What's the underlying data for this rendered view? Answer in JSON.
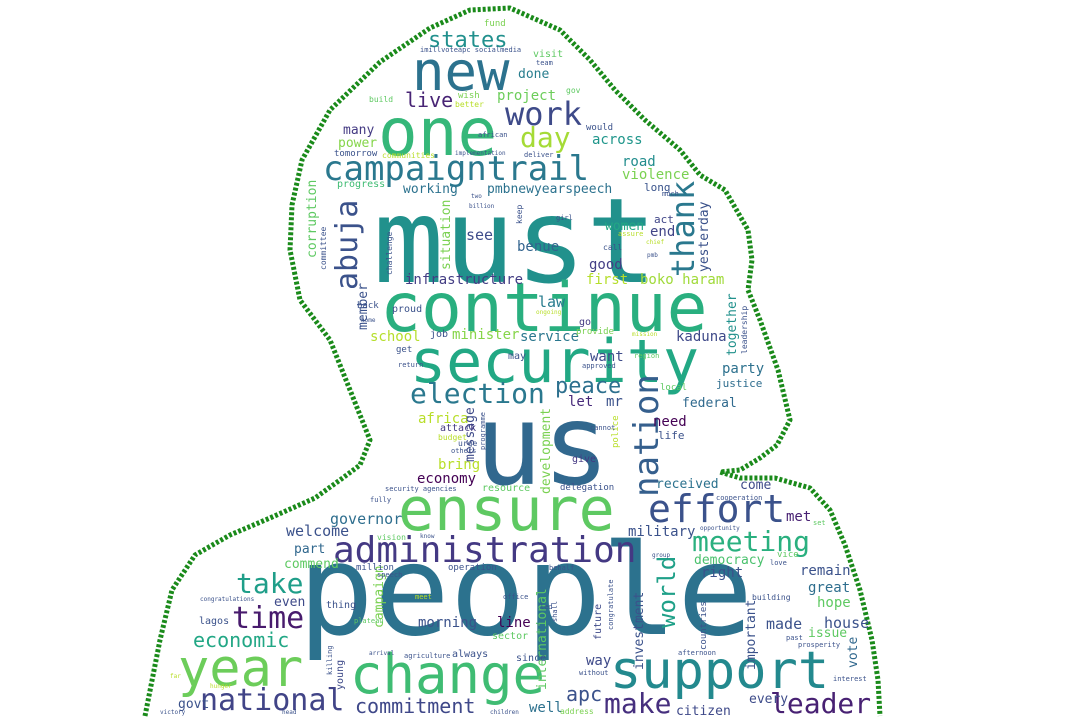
{
  "words": [
    {
      "t": "must",
      "c": "#21918c"
    },
    {
      "t": "people",
      "c": "#2c728e"
    },
    {
      "t": "us",
      "c": "#31688e"
    },
    {
      "t": "continue",
      "c": "#29af7f"
    },
    {
      "t": "security",
      "c": "#22a884"
    },
    {
      "t": "one",
      "c": "#35b779"
    },
    {
      "t": "new",
      "c": "#2c728e"
    },
    {
      "t": "ensure",
      "c": "#5ec962"
    },
    {
      "t": "change",
      "c": "#3fbc73"
    },
    {
      "t": "support",
      "c": "#23898e"
    },
    {
      "t": "year",
      "c": "#6ccd5a"
    },
    {
      "t": "campaigntrail",
      "c": "#2a788e"
    },
    {
      "t": "administration",
      "c": "#443983"
    },
    {
      "t": "effort",
      "c": "#3b528b"
    },
    {
      "t": "election",
      "c": "#2a788e"
    },
    {
      "t": "national",
      "c": "#414487"
    },
    {
      "t": "work",
      "c": "#3e4a89"
    },
    {
      "t": "day",
      "c": "#a5db36"
    },
    {
      "t": "states",
      "c": "#21908d"
    },
    {
      "t": "thank",
      "c": "#2a788e"
    },
    {
      "t": "abuja",
      "c": "#3b528b"
    },
    {
      "t": "nation",
      "c": "#355f8d"
    },
    {
      "t": "meeting",
      "c": "#2ab07f"
    },
    {
      "t": "take",
      "c": "#1f9e89"
    },
    {
      "t": "time",
      "c": "#481b6d"
    },
    {
      "t": "make",
      "c": "#462f7e"
    },
    {
      "t": "leader",
      "c": "#482173"
    },
    {
      "t": "commitment",
      "c": "#3f4889"
    },
    {
      "t": "economic",
      "c": "#22a785"
    },
    {
      "t": "peace",
      "c": "#2d708e"
    },
    {
      "t": "live",
      "c": "#482475"
    },
    {
      "t": "world",
      "c": "#1fa088"
    },
    {
      "t": "apc",
      "c": "#3b528b"
    },
    {
      "t": "governor",
      "c": "#2e6e8e"
    },
    {
      "t": "welcome",
      "c": "#3b528b"
    },
    {
      "t": "project",
      "c": "#6ccd5a"
    },
    {
      "t": "done",
      "c": "#287d8e"
    },
    {
      "t": "across",
      "c": "#1f968b"
    },
    {
      "t": "many",
      "c": "#443a83"
    },
    {
      "t": "power",
      "c": "#85d54a"
    },
    {
      "t": "road",
      "c": "#228d8d"
    },
    {
      "t": "violence",
      "c": "#7ad151"
    },
    {
      "t": "long",
      "c": "#3a548c"
    },
    {
      "t": "act",
      "c": "#404688"
    },
    {
      "t": "end",
      "c": "#414487"
    },
    {
      "t": "women",
      "c": "#22a884"
    },
    {
      "t": "good",
      "c": "#433e85"
    },
    {
      "t": "first",
      "c": "#b5de2b"
    },
    {
      "t": "boko haram",
      "c": "#a0da39"
    },
    {
      "t": "see",
      "c": "#3e4c8a"
    },
    {
      "t": "benue",
      "c": "#32648e"
    },
    {
      "t": "infrastructure",
      "c": "#433d84"
    },
    {
      "t": "law",
      "c": "#287c8e"
    },
    {
      "t": "minister",
      "c": "#86d549"
    },
    {
      "t": "service",
      "c": "#2a778e"
    },
    {
      "t": "school",
      "c": "#b5de2b"
    },
    {
      "t": "kaduna",
      "c": "#3e4989"
    },
    {
      "t": "want",
      "c": "#3e4c8a"
    },
    {
      "t": "party",
      "c": "#2d718e"
    },
    {
      "t": "justice",
      "c": "#2e6d8e"
    },
    {
      "t": "federal",
      "c": "#306a8e"
    },
    {
      "t": "let",
      "c": "#472a7a"
    },
    {
      "t": "mr",
      "c": "#3b528b"
    },
    {
      "t": "need",
      "c": "#440154"
    },
    {
      "t": "life",
      "c": "#3b528b"
    },
    {
      "t": "africa",
      "c": "#b8de29"
    },
    {
      "t": "bring",
      "c": "#b8de29"
    },
    {
      "t": "economy",
      "c": "#440154"
    },
    {
      "t": "received",
      "c": "#2c728e"
    },
    {
      "t": "come",
      "c": "#3e4a89"
    },
    {
      "t": "military",
      "c": "#3b528b"
    },
    {
      "t": "met",
      "c": "#482173"
    },
    {
      "t": "democracy",
      "c": "#4ac16d"
    },
    {
      "t": "right",
      "c": "#3b528b"
    },
    {
      "t": "remain",
      "c": "#3b528b"
    },
    {
      "t": "great",
      "c": "#2e6e8e"
    },
    {
      "t": "hope",
      "c": "#5ec962"
    },
    {
      "t": "house",
      "c": "#3b528b"
    },
    {
      "t": "issue",
      "c": "#5ec962"
    },
    {
      "t": "made",
      "c": "#3b528b"
    },
    {
      "t": "commend",
      "c": "#5ec962"
    },
    {
      "t": "part",
      "c": "#31688e"
    },
    {
      "t": "even",
      "c": "#3e4a89"
    },
    {
      "t": "morning",
      "c": "#3b528b"
    },
    {
      "t": "line",
      "c": "#440154"
    },
    {
      "t": "well",
      "c": "#2d718e"
    },
    {
      "t": "way",
      "c": "#3e4a89"
    },
    {
      "t": "every",
      "c": "#3e4c8a"
    },
    {
      "t": "citizen",
      "c": "#3e4989"
    },
    {
      "t": "govt",
      "c": "#3b528b"
    },
    {
      "t": "pmbnewyearspeech",
      "c": "#2c728e"
    },
    {
      "t": "working",
      "c": "#2c728e"
    },
    {
      "t": "progress",
      "c": "#3fbc73"
    },
    {
      "t": "tomorrow",
      "c": "#3b528b"
    },
    {
      "t": "corruption",
      "c": "#5ec962"
    },
    {
      "t": "member",
      "c": "#3b528b"
    },
    {
      "t": "situation",
      "c": "#7ad151"
    },
    {
      "t": "together",
      "c": "#21918c"
    },
    {
      "t": "yesterday",
      "c": "#3b528b"
    },
    {
      "t": "development",
      "c": "#7ad151"
    },
    {
      "t": "message",
      "c": "#3e4a89"
    },
    {
      "t": "international",
      "c": "#5ec962"
    },
    {
      "t": "investment",
      "c": "#3b528b"
    },
    {
      "t": "important",
      "c": "#3b528b"
    },
    {
      "t": "campaign",
      "c": "#7ad151"
    },
    {
      "t": "vote",
      "c": "#31688e"
    },
    {
      "t": "attack",
      "c": "#443983"
    },
    {
      "t": "give",
      "c": "#443983"
    },
    {
      "t": "delegation",
      "c": "#3b528b"
    },
    {
      "t": "resource",
      "c": "#5ec962"
    },
    {
      "t": "job",
      "c": "#3b528b"
    },
    {
      "t": "provide",
      "c": "#7ad151"
    },
    {
      "t": "proud",
      "c": "#3b528b"
    },
    {
      "t": "go",
      "c": "#443983"
    },
    {
      "t": "may",
      "c": "#3b528b"
    },
    {
      "t": "get",
      "c": "#3b528b"
    },
    {
      "t": "back",
      "c": "#3b528b"
    },
    {
      "t": "future",
      "c": "#3e4a89"
    },
    {
      "t": "sector",
      "c": "#5ec962"
    },
    {
      "t": "young",
      "c": "#3e4a89"
    },
    {
      "t": "since",
      "c": "#3b528b"
    },
    {
      "t": "always",
      "c": "#3b528b"
    },
    {
      "t": "lagos",
      "c": "#3b528b"
    },
    {
      "t": "thing",
      "c": "#3b528b"
    },
    {
      "t": "operation",
      "c": "#3b528b"
    },
    {
      "t": "million",
      "c": "#3b528b"
    },
    {
      "t": "countries",
      "c": "#3b528b"
    },
    {
      "t": "building",
      "c": "#3b528b"
    },
    {
      "t": "police",
      "c": "#b8de29"
    },
    {
      "t": "budget",
      "c": "#b8de29"
    },
    {
      "t": "urge",
      "c": "#3b528b"
    },
    {
      "t": "others",
      "c": "#3b528b"
    },
    {
      "t": "cannot",
      "c": "#3b528b"
    },
    {
      "t": "region",
      "c": "#5ec962"
    },
    {
      "t": "approved",
      "c": "#3b528b"
    },
    {
      "t": "local",
      "c": "#5ec962"
    },
    {
      "t": "fund",
      "c": "#7ad151"
    },
    {
      "t": "visit",
      "c": "#5ec962"
    },
    {
      "t": "team",
      "c": "#3b528b"
    },
    {
      "t": "imillvoteapc socialmedia",
      "c": "#3b528b"
    },
    {
      "t": "gov",
      "c": "#5ec962"
    },
    {
      "t": "wish",
      "c": "#7ad151"
    },
    {
      "t": "better",
      "c": "#b8de29"
    },
    {
      "t": "build",
      "c": "#5ec962"
    },
    {
      "t": "african",
      "c": "#3b528b"
    },
    {
      "t": "would",
      "c": "#3b528b"
    },
    {
      "t": "communities",
      "c": "#b8de29"
    },
    {
      "t": "implementation",
      "c": "#3b528b"
    },
    {
      "t": "deliver",
      "c": "#3b528b"
    },
    {
      "t": "much",
      "c": "#3b528b"
    },
    {
      "t": "billion",
      "c": "#3b528b"
    },
    {
      "t": "keep",
      "c": "#3b528b"
    },
    {
      "t": "two",
      "c": "#3b528b"
    },
    {
      "t": "girl",
      "c": "#3b528b"
    },
    {
      "t": "assure",
      "c": "#b8de29"
    },
    {
      "t": "call",
      "c": "#3b528b"
    },
    {
      "t": "chief",
      "c": "#b8de29"
    },
    {
      "t": "pmb",
      "c": "#3b528b"
    },
    {
      "t": "leadership",
      "c": "#3b528b"
    },
    {
      "t": "committee",
      "c": "#3b528b"
    },
    {
      "t": "challenge",
      "c": "#3b528b"
    },
    {
      "t": "home",
      "c": "#3b528b"
    },
    {
      "t": "ongoing",
      "c": "#b8de29"
    },
    {
      "t": "mission",
      "c": "#b8de29"
    },
    {
      "t": "return",
      "c": "#3b528b"
    },
    {
      "t": "programme",
      "c": "#3b528b"
    },
    {
      "t": "security agencies",
      "c": "#3b528b"
    },
    {
      "t": "fully",
      "c": "#3b528b"
    },
    {
      "t": "know",
      "c": "#3b528b"
    },
    {
      "t": "vision",
      "c": "#5ec962"
    },
    {
      "t": "speech",
      "c": "#3b528b"
    },
    {
      "t": "cooperation",
      "c": "#3b528b"
    },
    {
      "t": "opportunity",
      "c": "#3b528b"
    },
    {
      "t": "vice",
      "c": "#5ec962"
    },
    {
      "t": "love",
      "c": "#3b528b"
    },
    {
      "t": "set",
      "c": "#5ec962"
    },
    {
      "t": "group",
      "c": "#3b528b"
    },
    {
      "t": "behalf",
      "c": "#3b528b"
    },
    {
      "t": "led",
      "c": "#3b528b"
    },
    {
      "t": "office",
      "c": "#3b528b"
    },
    {
      "t": "meet",
      "c": "#b8de29"
    },
    {
      "t": "shall",
      "c": "#3b528b"
    },
    {
      "t": "congratulate",
      "c": "#3b528b"
    },
    {
      "t": "congratulations",
      "c": "#3b528b"
    },
    {
      "t": "plateau",
      "c": "#5ec962"
    },
    {
      "t": "killing",
      "c": "#3b528b"
    },
    {
      "t": "agriculture",
      "c": "#3b528b"
    },
    {
      "t": "arrival",
      "c": "#3b528b"
    },
    {
      "t": "without",
      "c": "#3b528b"
    },
    {
      "t": "afternoon",
      "c": "#3b528b"
    },
    {
      "t": "past",
      "c": "#3b528b"
    },
    {
      "t": "prosperity",
      "c": "#3b528b"
    },
    {
      "t": "interest",
      "c": "#3b528b"
    },
    {
      "t": "hunger",
      "c": "#b8de29"
    },
    {
      "t": "far",
      "c": "#b8de29"
    },
    {
      "t": "victory",
      "c": "#3b528b"
    },
    {
      "t": "head",
      "c": "#3b528b"
    },
    {
      "t": "children",
      "c": "#3b528b"
    },
    {
      "t": "address",
      "c": "#7ad151"
    }
  ]
}
